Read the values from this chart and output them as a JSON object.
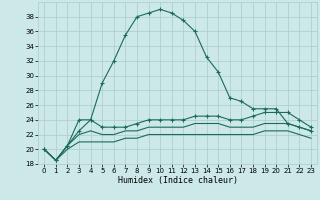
{
  "xlabel": "Humidex (Indice chaleur)",
  "background_color": "#cce8e8",
  "grid_color": "#aacccc",
  "line_color": "#1a6b5a",
  "xlim": [
    -0.5,
    23.5
  ],
  "ylim": [
    18,
    40
  ],
  "yticks": [
    18,
    20,
    22,
    24,
    26,
    28,
    30,
    32,
    34,
    36,
    38
  ],
  "xticks": [
    0,
    1,
    2,
    3,
    4,
    5,
    6,
    7,
    8,
    9,
    10,
    11,
    12,
    13,
    14,
    15,
    16,
    17,
    18,
    19,
    20,
    21,
    22,
    23
  ],
  "series1_x": [
    0,
    1,
    2,
    3,
    4,
    5,
    6,
    7,
    8,
    9,
    10,
    11,
    12,
    13,
    14,
    15,
    16,
    17,
    18,
    19,
    20,
    21,
    22,
    23
  ],
  "series1_y": [
    20.0,
    18.5,
    20.5,
    22.5,
    24.0,
    29.0,
    32.0,
    35.5,
    38.0,
    38.5,
    39.0,
    38.5,
    37.5,
    36.0,
    32.5,
    30.5,
    27.0,
    26.5,
    25.5,
    25.5,
    25.5,
    23.5,
    23.0,
    22.5
  ],
  "series2_x": [
    0,
    1,
    2,
    3,
    4,
    5,
    6,
    7,
    8,
    9,
    10,
    11,
    12,
    13,
    14,
    15,
    16,
    17,
    18,
    19,
    20,
    21,
    22,
    23
  ],
  "series2_y": [
    20.0,
    18.5,
    20.5,
    24.0,
    24.0,
    23.0,
    23.0,
    23.0,
    23.5,
    24.0,
    24.0,
    24.0,
    24.0,
    24.5,
    24.5,
    24.5,
    24.0,
    24.0,
    24.5,
    25.0,
    25.0,
    25.0,
    24.0,
    23.0
  ],
  "series3_x": [
    0,
    1,
    2,
    3,
    4,
    5,
    6,
    7,
    8,
    9,
    10,
    11,
    12,
    13,
    14,
    15,
    16,
    17,
    18,
    19,
    20,
    21,
    22,
    23
  ],
  "series3_y": [
    20.0,
    18.5,
    20.5,
    22.0,
    22.5,
    22.0,
    22.0,
    22.5,
    22.5,
    23.0,
    23.0,
    23.0,
    23.0,
    23.5,
    23.5,
    23.5,
    23.0,
    23.0,
    23.0,
    23.5,
    23.5,
    23.5,
    23.0,
    22.5
  ],
  "series4_x": [
    0,
    1,
    2,
    3,
    4,
    5,
    6,
    7,
    8,
    9,
    10,
    11,
    12,
    13,
    14,
    15,
    16,
    17,
    18,
    19,
    20,
    21,
    22,
    23
  ],
  "series4_y": [
    20.0,
    18.5,
    20.0,
    21.0,
    21.0,
    21.0,
    21.0,
    21.5,
    21.5,
    22.0,
    22.0,
    22.0,
    22.0,
    22.0,
    22.0,
    22.0,
    22.0,
    22.0,
    22.0,
    22.5,
    22.5,
    22.5,
    22.0,
    21.5
  ]
}
